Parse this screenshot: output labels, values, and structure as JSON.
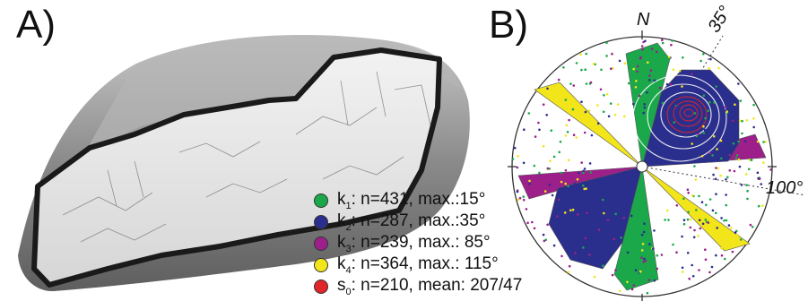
{
  "panels": {
    "a_label": "A)",
    "b_label": "B)"
  },
  "stereonet": {
    "north_label": "N",
    "angle_labels": [
      "35°",
      "100°"
    ]
  },
  "legend": [
    {
      "symbol": "k",
      "subscript": "1",
      "text": ": n=431, max.:15°",
      "color": "#1aa84a"
    },
    {
      "symbol": "k",
      "subscript": "2",
      "text": ": n=287, max.:35°",
      "color": "#2a2e8c"
    },
    {
      "symbol": "k",
      "subscript": "3",
      "text": ": n=239, max.: 85°",
      "color": "#9c1f8a"
    },
    {
      "symbol": "k",
      "subscript": "4",
      "text": ": n=364, max.: 115°",
      "color": "#f2e51a"
    },
    {
      "symbol": "s",
      "subscript": "0",
      "text": ": n=210, mean: 207/47",
      "color": "#e0262a"
    }
  ]
}
